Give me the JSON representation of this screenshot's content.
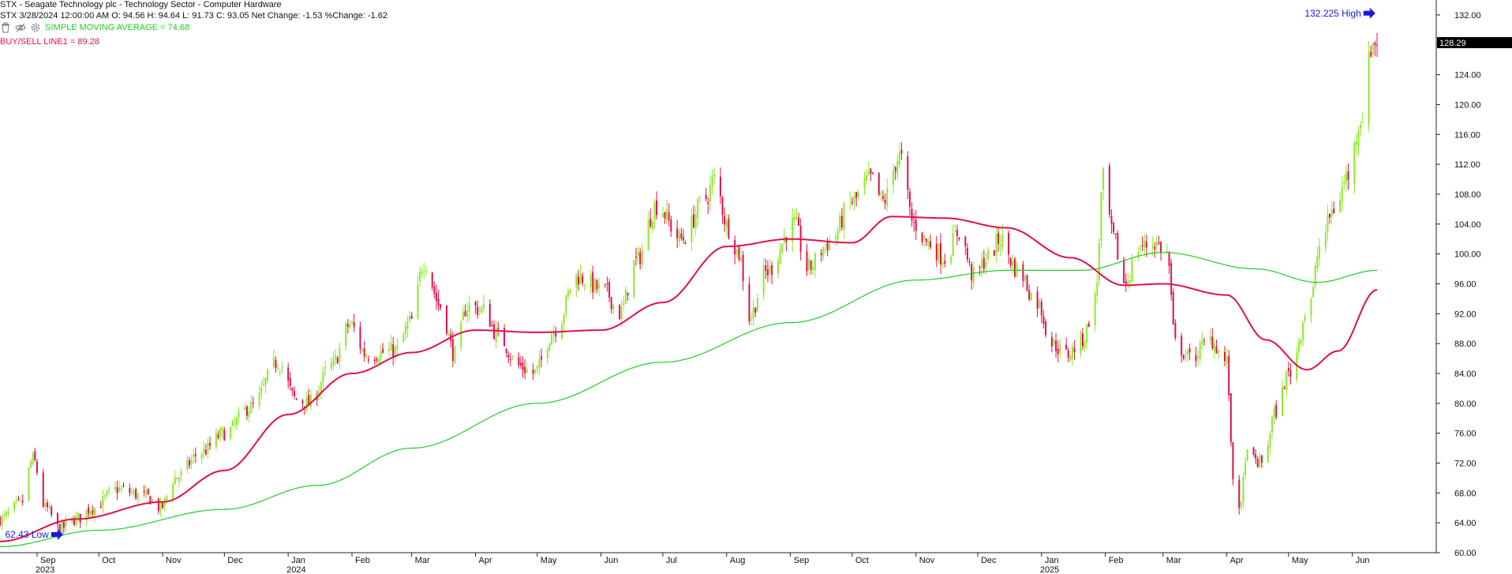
{
  "header": {
    "line1": "STX - Seagate Technology plc - Technology Sector - Computer Hardware",
    "line2": "STX 3/28/2024 12:00:00 AM O: 94.56 H: 94.64 L: 91.73 C: 93.05 Net Change: -1.53  %Change: -1.62",
    "indicator1": "SIMPLE MOVING AVERAGE     = 74.68",
    "indicator2": "BUY/SELL LINE1 = 89.28"
  },
  "toolbar": {
    "icons": [
      "trash-icon",
      "eye-icon",
      "gear-icon"
    ]
  },
  "colors": {
    "up": "#8ee82a",
    "down": "#e0104a",
    "sma": "#22cc22",
    "buysell": "#e0104a",
    "annotation": "#1a1adb"
  },
  "chart_data": {
    "type": "candlestick",
    "ylim": [
      60,
      134
    ],
    "y_ticks": [
      "132.00",
      "128.00",
      "124.00",
      "120.00",
      "116.00",
      "112.00",
      "108.00",
      "104.00",
      "100.00",
      "96.00",
      "92.00",
      "88.00",
      "84.00",
      "80.00",
      "76.00",
      "72.00",
      "68.00",
      "64.00",
      "60.00"
    ],
    "current_price": "128.29",
    "x_start": "2023-08-14",
    "x_end": "2025-06-13",
    "month_ticks": [
      {
        "date": "2023-09-01",
        "label": "Sep",
        "year": "2023"
      },
      {
        "date": "2023-10-01",
        "label": "Oct"
      },
      {
        "date": "2023-11-01",
        "label": "Nov"
      },
      {
        "date": "2023-12-01",
        "label": "Dec"
      },
      {
        "date": "2024-01-01",
        "label": "Jan",
        "year": "2024"
      },
      {
        "date": "2024-02-01",
        "label": "Feb"
      },
      {
        "date": "2024-03-01",
        "label": "Mar"
      },
      {
        "date": "2024-04-01",
        "label": "Apr"
      },
      {
        "date": "2024-05-01",
        "label": "May"
      },
      {
        "date": "2024-06-01",
        "label": "Jun"
      },
      {
        "date": "2024-07-01",
        "label": "Jul"
      },
      {
        "date": "2024-08-01",
        "label": "Aug"
      },
      {
        "date": "2024-09-01",
        "label": "Sep"
      },
      {
        "date": "2024-10-01",
        "label": "Oct"
      },
      {
        "date": "2024-11-01",
        "label": "Nov"
      },
      {
        "date": "2024-12-01",
        "label": "Dec"
      },
      {
        "date": "2025-01-01",
        "label": "Jan",
        "year": "2025"
      },
      {
        "date": "2025-02-01",
        "label": "Feb"
      },
      {
        "date": "2025-03-01",
        "label": "Mar"
      },
      {
        "date": "2025-04-01",
        "label": "Apr"
      },
      {
        "date": "2025-05-01",
        "label": "May"
      },
      {
        "date": "2025-06-01",
        "label": "Jun"
      }
    ],
    "price_anchors": [
      [
        "2023-08-14",
        64.5
      ],
      [
        "2023-08-24",
        66.5
      ],
      [
        "2023-08-30",
        72.5
      ],
      [
        "2023-09-05",
        66.0
      ],
      [
        "2023-09-12",
        63.2
      ],
      [
        "2023-09-20",
        64.5
      ],
      [
        "2023-09-28",
        66.0
      ],
      [
        "2023-10-10",
        68.5
      ],
      [
        "2023-10-24",
        67.5
      ],
      [
        "2023-10-31",
        66.0
      ],
      [
        "2023-11-07",
        70.0
      ],
      [
        "2023-11-20",
        73.5
      ],
      [
        "2023-12-01",
        76.0
      ],
      [
        "2023-12-14",
        79.5
      ],
      [
        "2023-12-27",
        85.5
      ],
      [
        "2024-01-05",
        80.5
      ],
      [
        "2024-01-11",
        80.0
      ],
      [
        "2024-01-22",
        85.0
      ],
      [
        "2024-01-31",
        90.5
      ],
      [
        "2024-02-08",
        86.5
      ],
      [
        "2024-02-22",
        87.0
      ],
      [
        "2024-03-01",
        91.0
      ],
      [
        "2024-03-07",
        99.0
      ],
      [
        "2024-03-15",
        93.0
      ],
      [
        "2024-03-22",
        86.5
      ],
      [
        "2024-03-28",
        93.05
      ],
      [
        "2024-04-05",
        92.5
      ],
      [
        "2024-04-12",
        89.0
      ],
      [
        "2024-04-22",
        85.0
      ],
      [
        "2024-04-29",
        84.0
      ],
      [
        "2024-05-10",
        90.0
      ],
      [
        "2024-05-20",
        97.0
      ],
      [
        "2024-06-03",
        95.0
      ],
      [
        "2024-06-10",
        92.0
      ],
      [
        "2024-06-18",
        99.0
      ],
      [
        "2024-06-28",
        106.5
      ],
      [
        "2024-07-10",
        102.0
      ],
      [
        "2024-07-22",
        107.5
      ],
      [
        "2024-07-26",
        110.0
      ],
      [
        "2024-08-02",
        103.5
      ],
      [
        "2024-08-07",
        100.0
      ],
      [
        "2024-08-12",
        91.5
      ],
      [
        "2024-08-20",
        97.5
      ],
      [
        "2024-09-03",
        104.0
      ],
      [
        "2024-09-09",
        98.0
      ],
      [
        "2024-09-20",
        101.5
      ],
      [
        "2024-10-01",
        107.0
      ],
      [
        "2024-10-10",
        110.0
      ],
      [
        "2024-10-16",
        107.0
      ],
      [
        "2024-10-24",
        113.0
      ],
      [
        "2024-10-31",
        104.0
      ],
      [
        "2024-11-07",
        101.5
      ],
      [
        "2024-11-15",
        99.5
      ],
      [
        "2024-11-22",
        103.0
      ],
      [
        "2024-11-29",
        97.0
      ],
      [
        "2024-12-06",
        99.5
      ],
      [
        "2024-12-12",
        102.0
      ],
      [
        "2024-12-20",
        98.0
      ],
      [
        "2024-12-30",
        93.5
      ],
      [
        "2025-01-06",
        88.0
      ],
      [
        "2025-01-13",
        86.5
      ],
      [
        "2025-01-21",
        88.5
      ],
      [
        "2025-01-27",
        94.0
      ],
      [
        "2025-01-31",
        110.0
      ],
      [
        "2025-02-05",
        102.0
      ],
      [
        "2025-02-10",
        96.0
      ],
      [
        "2025-02-18",
        101.0
      ],
      [
        "2025-02-25",
        101.5
      ],
      [
        "2025-03-03",
        100.0
      ],
      [
        "2025-03-07",
        88.0
      ],
      [
        "2025-03-14",
        86.0
      ],
      [
        "2025-03-24",
        88.5
      ],
      [
        "2025-04-01",
        85.5
      ],
      [
        "2025-04-04",
        70.0
      ],
      [
        "2025-04-08",
        66.0
      ],
      [
        "2025-04-10",
        73.0
      ],
      [
        "2025-04-18",
        72.0
      ],
      [
        "2025-04-25",
        79.0
      ],
      [
        "2025-05-01",
        84.0
      ],
      [
        "2025-05-12",
        94.0
      ],
      [
        "2025-05-16",
        101.0
      ],
      [
        "2025-05-23",
        106.0
      ],
      [
        "2025-05-30",
        110.5
      ],
      [
        "2025-06-05",
        118.0
      ],
      [
        "2025-06-11",
        128.29
      ],
      [
        "2025-06-13",
        128.5
      ]
    ],
    "series": [
      {
        "name": "SIMPLE MOVING AVERAGE",
        "color": "#22cc22",
        "points": [
          [
            "2023-08-14",
            60.8
          ],
          [
            "2023-10-01",
            63.0
          ],
          [
            "2023-12-01",
            65.8
          ],
          [
            "2024-01-15",
            69.0
          ],
          [
            "2024-03-01",
            74.0
          ],
          [
            "2024-05-01",
            80.0
          ],
          [
            "2024-07-01",
            85.5
          ],
          [
            "2024-09-01",
            90.8
          ],
          [
            "2024-11-01",
            96.5
          ],
          [
            "2024-12-15",
            97.8
          ],
          [
            "2025-01-20",
            97.8
          ],
          [
            "2025-03-01",
            100.2
          ],
          [
            "2025-04-15",
            98.0
          ],
          [
            "2025-05-15",
            96.2
          ],
          [
            "2025-06-13",
            97.8
          ]
        ]
      },
      {
        "name": "BUY/SELL LINE1",
        "color": "#e0104a",
        "points": [
          [
            "2023-08-14",
            61.5
          ],
          [
            "2023-09-20",
            64.5
          ],
          [
            "2023-11-01",
            66.8
          ],
          [
            "2023-12-01",
            71.0
          ],
          [
            "2024-01-01",
            78.5
          ],
          [
            "2024-02-01",
            84.0
          ],
          [
            "2024-03-01",
            86.8
          ],
          [
            "2024-04-01",
            89.8
          ],
          [
            "2024-05-01",
            89.5
          ],
          [
            "2024-06-01",
            89.8
          ],
          [
            "2024-07-01",
            93.5
          ],
          [
            "2024-08-01",
            101.0
          ],
          [
            "2024-09-01",
            102.0
          ],
          [
            "2024-10-01",
            101.5
          ],
          [
            "2024-10-20",
            105.0
          ],
          [
            "2024-11-15",
            104.8
          ],
          [
            "2024-12-15",
            103.5
          ],
          [
            "2025-01-15",
            99.5
          ],
          [
            "2025-02-10",
            95.8
          ],
          [
            "2025-03-01",
            96.0
          ],
          [
            "2025-04-01",
            94.5
          ],
          [
            "2025-04-20",
            88.5
          ],
          [
            "2025-05-10",
            84.5
          ],
          [
            "2025-05-25",
            87.0
          ],
          [
            "2025-06-13",
            95.2
          ]
        ]
      }
    ],
    "annotations": [
      {
        "text": "132.225 High",
        "date": "2025-06-11",
        "value": 132.225
      },
      {
        "text": "62.43 Low",
        "date": "2023-09-14",
        "value": 62.43
      }
    ]
  }
}
